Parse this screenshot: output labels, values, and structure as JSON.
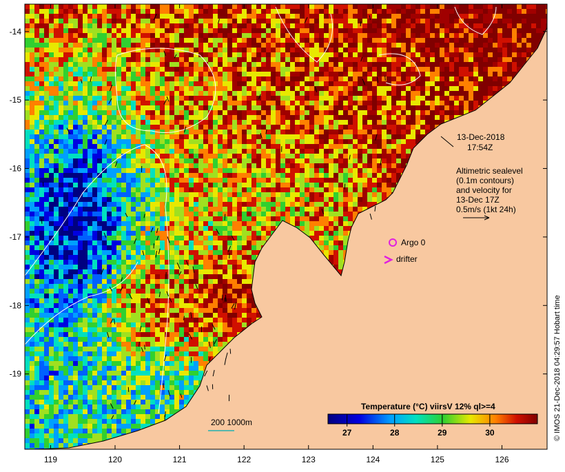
{
  "map": {
    "lon_ticks": [
      "119",
      "120",
      "121",
      "122",
      "123",
      "124",
      "125",
      "126"
    ],
    "lat_ticks": [
      "-14",
      "-15",
      "-16",
      "-17",
      "-18",
      "-19"
    ],
    "lon_range": [
      118.6,
      126.7
    ],
    "lat_range": [
      -20.1,
      -13.6
    ]
  },
  "annotations": {
    "date": "13-Dec-2018",
    "time": "17:54Z",
    "altimetry_line1": "Altimetric sealevel",
    "altimetry_line2": "(0.1m contours)",
    "altimetry_line3": "and velocity for",
    "altimetry_line4": "13-Dec 17Z",
    "altimetry_line5": "0.5m/s (1kt 24h)",
    "argo_label": "Argo 0",
    "drifter_label": "drifter",
    "depth_label": "200  1000m",
    "credit": "© IMOS 21-Dec-2018 04:29:57 Hobart time"
  },
  "colorbar": {
    "title": "Temperature (°C) viirsV 12% ql>=4",
    "tick_labels": [
      "27",
      "28",
      "29",
      "30"
    ],
    "range": [
      26.6,
      31.0
    ]
  },
  "colors": {
    "land": "#f8c8a0",
    "argo": "#e020e0",
    "drifter": "#e020e0",
    "depth_contour": "#20b0b0"
  }
}
